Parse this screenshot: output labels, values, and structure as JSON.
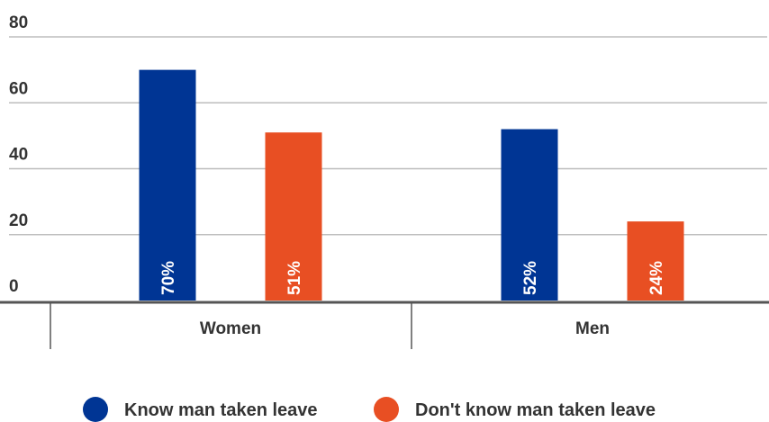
{
  "chart_data": {
    "type": "bar",
    "categories": [
      "Women",
      "Men"
    ],
    "series": [
      {
        "name": "Know man taken leave",
        "values": [
          70,
          52
        ],
        "labels": [
          "70%",
          "52%"
        ],
        "color": "#003594"
      },
      {
        "name": "Don't know man taken leave",
        "values": [
          51,
          24
        ],
        "labels": [
          "51%",
          "24%"
        ],
        "color": "#E84F23"
      }
    ],
    "yticks": [
      "0",
      "20",
      "40",
      "60",
      "80"
    ],
    "ylim": [
      0,
      80
    ],
    "grid": true,
    "legend": "bottom",
    "title": "",
    "xlabel": "",
    "ylabel": ""
  }
}
